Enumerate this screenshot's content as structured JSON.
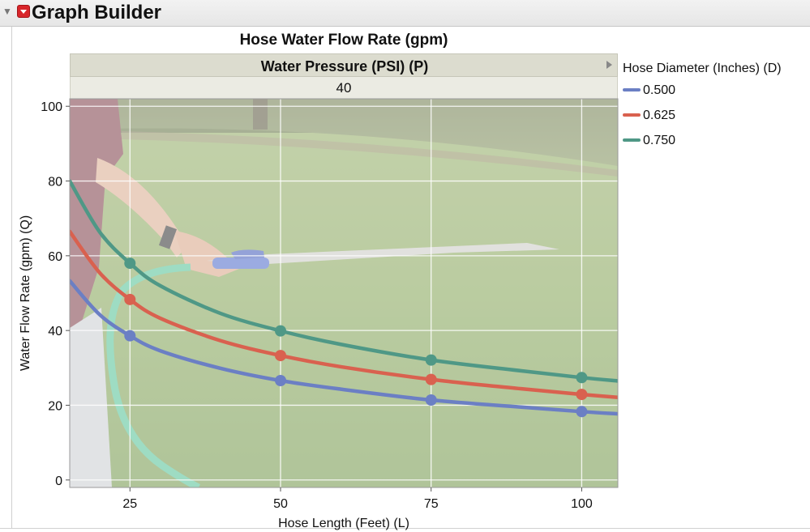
{
  "app": {
    "title": "Graph Builder"
  },
  "icons": {
    "disclosure": "disclosure-triangle-icon",
    "menu": "red-hotspot-menu-icon"
  },
  "chart_data": {
    "type": "line",
    "title": "Hose Water Flow Rate (gpm)",
    "group_by": {
      "label": "Water Pressure (PSI) (P)",
      "level": "40"
    },
    "xlabel": "Hose Length (Feet) (L)",
    "ylabel": "Water Flow Rate (gpm) (Q)",
    "xlim": [
      15,
      106
    ],
    "ylim": [
      -2,
      102
    ],
    "xticks": [
      25,
      50,
      75,
      100
    ],
    "yticks": [
      0,
      20,
      40,
      60,
      80,
      100
    ],
    "grid": true,
    "background": "photo of person spraying garden hose on lawn",
    "legend": {
      "title": "Hose Diameter (Inches) (D)",
      "placement": "right"
    },
    "series": [
      {
        "name": "0.500",
        "color": "#6b7fc4",
        "line_x": [
          15,
          20,
          25,
          30,
          40,
          50,
          60,
          75,
          90,
          100,
          106
        ],
        "line_y": [
          53.3,
          44.2,
          38.6,
          34.6,
          29.9,
          26.6,
          24.3,
          21.4,
          19.5,
          18.3,
          17.7
        ],
        "points_x": [
          25,
          50,
          75,
          100
        ],
        "points_y": [
          38.6,
          26.6,
          21.4,
          18.3
        ]
      },
      {
        "name": "0.625",
        "color": "#d9614f",
        "line_x": [
          15,
          20,
          25,
          30,
          40,
          50,
          60,
          75,
          90,
          100,
          106
        ],
        "line_y": [
          66.5,
          55.4,
          48.3,
          43.3,
          37.3,
          33.3,
          30.3,
          26.9,
          24.4,
          22.9,
          22.1
        ],
        "points_x": [
          25,
          50,
          75,
          100
        ],
        "points_y": [
          48.3,
          33.3,
          26.9,
          22.9
        ]
      },
      {
        "name": "0.750",
        "color": "#4f9886",
        "line_x": [
          15,
          20,
          25,
          30,
          40,
          50,
          60,
          75,
          90,
          100,
          106
        ],
        "line_y": [
          80.0,
          66.3,
          58.0,
          52.0,
          44.6,
          39.9,
          36.3,
          32.1,
          29.2,
          27.4,
          26.5
        ],
        "points_x": [
          25,
          50,
          75,
          100
        ],
        "points_y": [
          58.0,
          39.9,
          32.1,
          27.4
        ]
      }
    ]
  }
}
